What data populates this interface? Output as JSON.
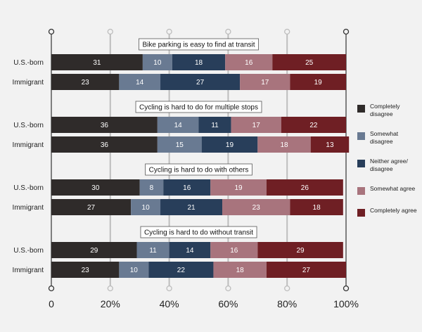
{
  "chart_data": {
    "type": "bar",
    "stacked": true,
    "orientation": "horizontal",
    "percent_axis": true,
    "xlim": [
      0,
      100
    ],
    "x_ticks": [
      "0",
      "20%",
      "40%",
      "60%",
      "80%",
      "100%"
    ],
    "row_labels": [
      "U.S.-born",
      "Immigrant"
    ],
    "segments": [
      {
        "name": "Completely disagree",
        "color": "#2f2b2a"
      },
      {
        "name": "Somewhat disagree",
        "color": "#697a92"
      },
      {
        "name": "Neither agree/ disagree",
        "color": "#283e5a"
      },
      {
        "name": "Somewhat agree",
        "color": "#a8747d"
      },
      {
        "name": "Completely agree",
        "color": "#6f1f24"
      }
    ],
    "groups": [
      {
        "title": "Bike parking is easy to find at transit",
        "rows": [
          {
            "label": "U.S.-born",
            "values": [
              31,
              10,
              18,
              16,
              25
            ]
          },
          {
            "label": "Immigrant",
            "values": [
              23,
              14,
              27,
              17,
              19
            ]
          }
        ]
      },
      {
        "title": "Cycling is hard to do for multiple stops",
        "rows": [
          {
            "label": "U.S.-born",
            "values": [
              36,
              14,
              11,
              17,
              22
            ]
          },
          {
            "label": "Immigrant",
            "values": [
              36,
              15,
              19,
              18,
              13
            ]
          }
        ]
      },
      {
        "title": "Cycling is hard to do with others",
        "rows": [
          {
            "label": "U.S.-born",
            "values": [
              30,
              8,
              16,
              19,
              26
            ]
          },
          {
            "label": "Immigrant",
            "values": [
              27,
              10,
              21,
              23,
              18
            ]
          }
        ]
      },
      {
        "title": "Cycling is hard to do without transit",
        "rows": [
          {
            "label": "U.S.-born",
            "values": [
              29,
              11,
              14,
              16,
              29
            ]
          },
          {
            "label": "Immigrant",
            "values": [
              23,
              10,
              22,
              18,
              27
            ]
          }
        ]
      }
    ]
  }
}
